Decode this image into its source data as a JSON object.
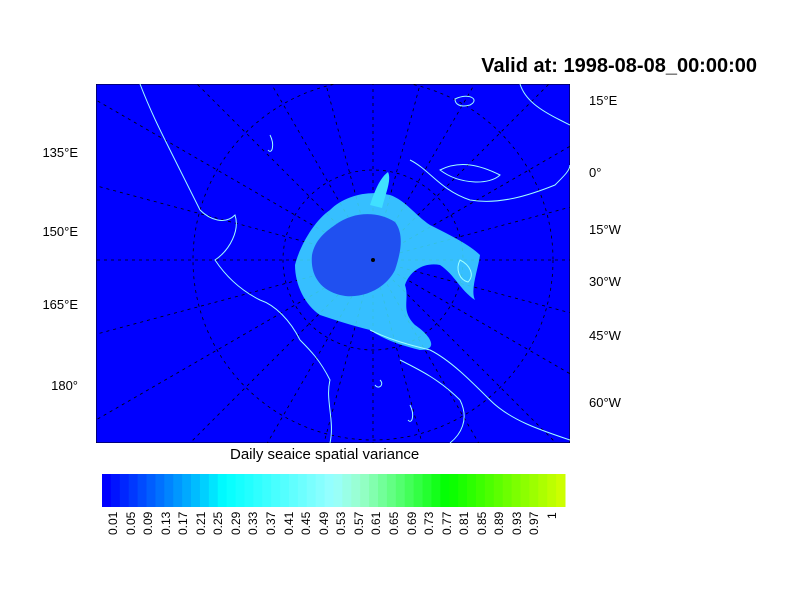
{
  "title": "Valid at: 1998-08-08_00:00:00",
  "map": {
    "background_color": "#0000ff",
    "coastline_color": "#a0ffff",
    "ice_color": "#40e0ff",
    "left_labels": [
      "135°E",
      "150°E",
      "165°E",
      "180°"
    ],
    "right_labels": [
      "15°E",
      "0°",
      "15°W",
      "30°W",
      "45°W",
      "60°W"
    ]
  },
  "colorbar": {
    "title": "Daily seaice spatial variance",
    "tick_labels": [
      "0.01",
      "0.05",
      "0.09",
      "0.13",
      "0.17",
      "0.21",
      "0.25",
      "0.29",
      "0.33",
      "0.37",
      "0.41",
      "0.45",
      "0.49",
      "0.53",
      "0.57",
      "0.61",
      "0.65",
      "0.69",
      "0.73",
      "0.77",
      "0.81",
      "0.85",
      "0.89",
      "0.93",
      "0.97",
      "1"
    ],
    "color_stops": [
      {
        "value": 0.0,
        "color": "#0000ff"
      },
      {
        "value": 0.2,
        "color": "#00c0ff"
      },
      {
        "value": 0.26,
        "color": "#00ffff"
      },
      {
        "value": 0.5,
        "color": "#99ffff"
      },
      {
        "value": 0.56,
        "color": "#99ffcc"
      },
      {
        "value": 0.75,
        "color": "#00ff00"
      },
      {
        "value": 1.0,
        "color": "#ccff00"
      }
    ]
  }
}
